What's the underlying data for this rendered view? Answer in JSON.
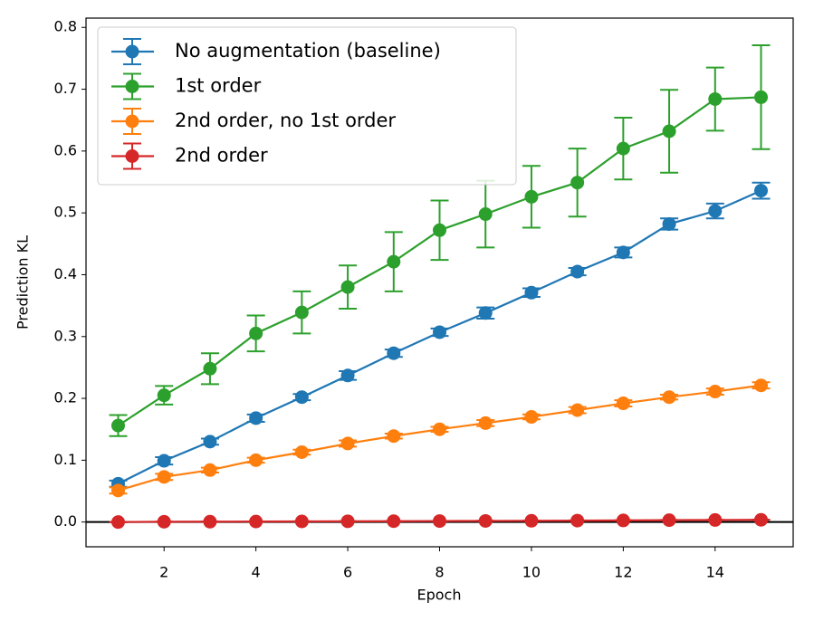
{
  "chart_data": {
    "type": "errorbar-line",
    "x_label": "Epoch",
    "y_label": "Prediction KL",
    "x": [
      1,
      2,
      3,
      4,
      5,
      6,
      7,
      8,
      9,
      10,
      11,
      12,
      13,
      14,
      15
    ],
    "xlim": [
      0.3,
      15.7
    ],
    "xticks": [
      2,
      4,
      6,
      8,
      10,
      12,
      14
    ],
    "ylim": [
      -0.04,
      0.815
    ],
    "yticks": [
      {
        "value": 0,
        "label": "0.0"
      },
      0.1,
      0.2,
      0.3,
      0.4,
      0.5,
      0.6,
      0.7,
      0.8
    ],
    "hline": 0,
    "legend": "upper left",
    "series": [
      {
        "name": "No augmentation (baseline)",
        "color": "#1f77b4",
        "values": [
          0.062,
          0.099,
          0.13,
          0.168,
          0.202,
          0.237,
          0.273,
          0.307,
          0.338,
          0.371,
          0.405,
          0.436,
          0.482,
          0.503,
          0.536
        ],
        "errors": [
          0.005,
          0.006,
          0.005,
          0.006,
          0.005,
          0.007,
          0.006,
          0.006,
          0.009,
          0.007,
          0.006,
          0.008,
          0.009,
          0.012,
          0.013
        ]
      },
      {
        "name": "1st order",
        "color": "#2ca02c",
        "values": [
          0.156,
          0.205,
          0.248,
          0.305,
          0.339,
          0.38,
          0.421,
          0.472,
          0.498,
          0.526,
          0.549,
          0.604,
          0.632,
          0.684,
          0.687
        ],
        "errors": [
          0.017,
          0.015,
          0.025,
          0.029,
          0.034,
          0.035,
          0.048,
          0.048,
          0.054,
          0.05,
          0.055,
          0.05,
          0.067,
          0.051,
          0.084
        ]
      },
      {
        "name": "2nd order, no 1st order",
        "color": "#ff7f0e",
        "values": [
          0.051,
          0.073,
          0.084,
          0.1,
          0.113,
          0.127,
          0.139,
          0.15,
          0.16,
          0.17,
          0.181,
          0.192,
          0.202,
          0.211,
          0.221
        ],
        "errors": [
          0.005,
          0.005,
          0.004,
          0.004,
          0.004,
          0.005,
          0.004,
          0.004,
          0.005,
          0.004,
          0.005,
          0.005,
          0.004,
          0.005,
          0.005
        ]
      },
      {
        "name": "2nd order",
        "color": "#d62728",
        "values": [
          0.0,
          0.0005,
          0.0006,
          0.0008,
          0.001,
          0.0012,
          0.0014,
          0.0016,
          0.0018,
          0.002,
          0.0023,
          0.0026,
          0.003,
          0.0033,
          0.0036
        ],
        "errors": [
          0.0002,
          0.0002,
          0.0002,
          0.0002,
          0.0002,
          0.0002,
          0.0002,
          0.0002,
          0.0002,
          0.0003,
          0.0003,
          0.0003,
          0.0003,
          0.0003,
          0.0003
        ]
      }
    ]
  }
}
